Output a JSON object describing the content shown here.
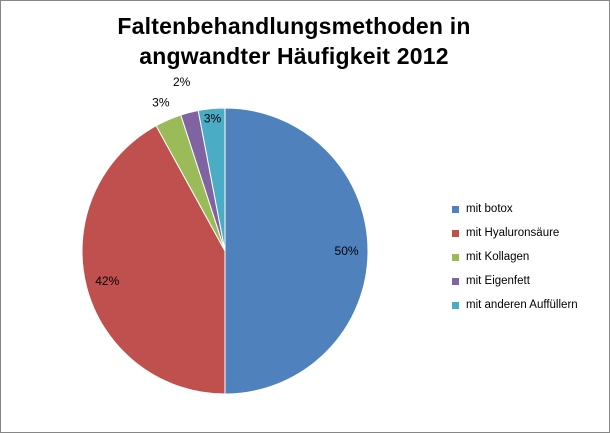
{
  "chart_data": {
    "type": "pie",
    "title_lines": [
      "Faltenbehandlungsmethoden in",
      "angwandter Häufigkeit 2012"
    ],
    "legend_position": "right",
    "slices": [
      {
        "label": "mit botox",
        "value": 50,
        "display": "50%",
        "color": "#4F81BD"
      },
      {
        "label": "mit Hyaluronsäure",
        "value": 42,
        "display": "42%",
        "color": "#C0504D"
      },
      {
        "label": "mit Kollagen",
        "value": 3,
        "display": "3%",
        "color": "#9BBB59"
      },
      {
        "label": "mit Eigenfett",
        "value": 2,
        "display": "2%",
        "color": "#8064A2"
      },
      {
        "label": "mit anderen Auffüllern",
        "value": 3,
        "display": "3%",
        "color": "#4BACC6"
      }
    ]
  }
}
